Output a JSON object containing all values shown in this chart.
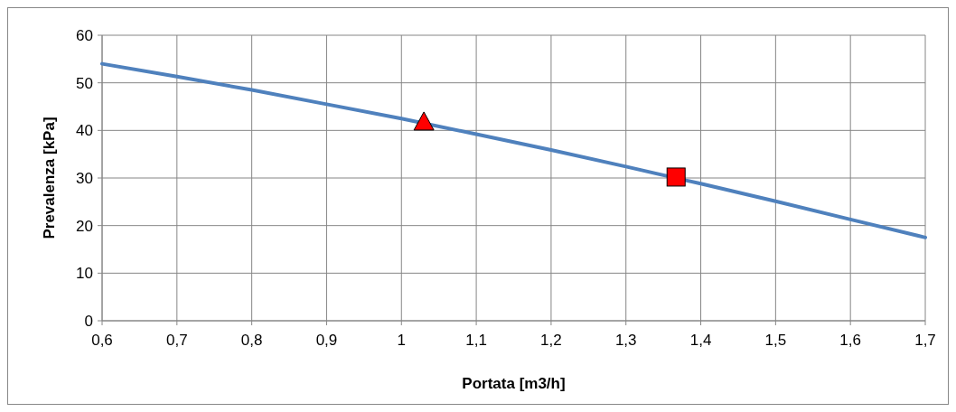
{
  "chart_data": {
    "type": "line",
    "xlabel": "Portata [m3/h]",
    "ylabel": "Prevalenza [kPa]",
    "xlim": [
      0.6,
      1.7
    ],
    "ylim": [
      0,
      60
    ],
    "xticks": [
      {
        "value": 0.6,
        "label": "0,6"
      },
      {
        "value": 0.7,
        "label": "0,7"
      },
      {
        "value": 0.8,
        "label": "0,8"
      },
      {
        "value": 0.9,
        "label": "0,9"
      },
      1,
      {
        "value": 1.1,
        "label": "1,1"
      },
      {
        "value": 1.2,
        "label": "1,2"
      },
      {
        "value": 1.3,
        "label": "1,3"
      },
      {
        "value": 1.4,
        "label": "1,4"
      },
      {
        "value": 1.5,
        "label": "1,5"
      },
      {
        "value": 1.6,
        "label": "1,6"
      },
      {
        "value": 1.7,
        "label": "1,7"
      }
    ],
    "yticks": [
      0,
      10,
      20,
      30,
      40,
      50,
      60
    ],
    "grid": true,
    "series": [
      {
        "color": "#4f81bd",
        "marker": "none",
        "x": [
          0.6,
          0.7,
          0.8,
          0.9,
          1.0,
          1.1,
          1.2,
          1.3,
          1.4,
          1.5,
          1.6,
          1.7
        ],
        "values": [
          54,
          51.3,
          48.5,
          45.5,
          42.5,
          39.2,
          35.9,
          32.4,
          28.8,
          25.1,
          21.3,
          17.5
        ]
      },
      {
        "type": "scatter",
        "color": "#ff0000",
        "marker": "triangle",
        "x": [
          1.03
        ],
        "values": [
          41.6
        ]
      },
      {
        "type": "scatter",
        "color": "#ff0000",
        "marker": "square",
        "x": [
          1.367
        ],
        "values": [
          30.2
        ]
      }
    ]
  }
}
